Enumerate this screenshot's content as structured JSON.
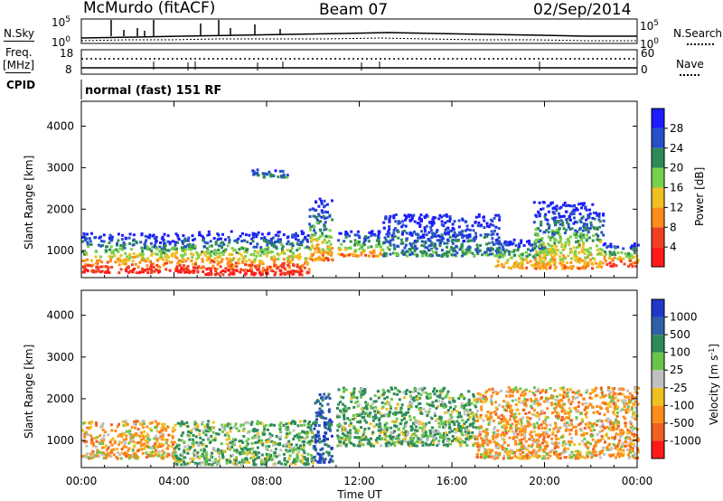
{
  "header": {
    "station": "McMurdo (fitACF)",
    "beam": "Beam 07",
    "date": "02/Sep/2014"
  },
  "top_panel": {
    "nsky_label": "N.Sky",
    "nsearch_label": "N.Search",
    "left_ticks": [
      "10^5",
      "10^0"
    ],
    "right_ticks": [
      "10^5",
      "10^0"
    ],
    "freq_label_1": "Freq.",
    "freq_label_2": "[MHz]",
    "freq_ticks": [
      "18",
      "8"
    ],
    "nave_label": "Nave",
    "nave_ticks": [
      "60",
      "0"
    ],
    "cpid_label": "CPID",
    "mode_text": "normal (fast) 151 RF"
  },
  "chart_data": [
    {
      "type": "heatmap",
      "title": "",
      "xlabel": "Time UT",
      "ylabel": "Slant Range [km]",
      "x_ticks": [
        "00:00",
        "04:00",
        "08:00",
        "12:00",
        "16:00",
        "20:00",
        "00:00"
      ],
      "x_range_hours": [
        0,
        24
      ],
      "y_ticks": [
        1000,
        2000,
        3000,
        4000
      ],
      "ylim": [
        350,
        4600
      ],
      "colorbar": {
        "label": "Power [dB]",
        "ticks": [
          "4",
          "8",
          "12",
          "16",
          "20",
          "24",
          "28"
        ],
        "colors": [
          "#1c1cff",
          "#2550c8",
          "#2e8b57",
          "#79d04a",
          "#f0c020",
          "#ff8c1a",
          "#f04020",
          "#ff1a1a"
        ]
      },
      "scatter_bands": [
        {
          "t": [
            0.0,
            5.0
          ],
          "r": [
            500,
            1450
          ],
          "level": "high"
        },
        {
          "t": [
            5.0,
            9.8
          ],
          "r": [
            450,
            1500
          ],
          "level": "high"
        },
        {
          "t": [
            9.8,
            10.8
          ],
          "r": [
            800,
            2300
          ],
          "level": "medium"
        },
        {
          "t": [
            11.0,
            13.0
          ],
          "r": [
            900,
            1500
          ],
          "level": "medium"
        },
        {
          "t": [
            13.0,
            18.0
          ],
          "r": [
            900,
            1900
          ],
          "level": "low"
        },
        {
          "t": [
            17.8,
            20.0
          ],
          "r": [
            600,
            1300
          ],
          "level": "medium"
        },
        {
          "t": [
            19.5,
            22.5
          ],
          "r": [
            600,
            2200
          ],
          "level": "medium"
        },
        {
          "t": [
            22.5,
            24.0
          ],
          "r": [
            650,
            1200
          ],
          "level": "high"
        },
        {
          "t": [
            7.3,
            9.0
          ],
          "r": [
            2800,
            3000
          ],
          "level": "low"
        }
      ]
    },
    {
      "type": "heatmap",
      "title": "",
      "xlabel": "Time UT",
      "ylabel": "Slant Range [km]",
      "x_ticks": [
        "00:00",
        "04:00",
        "08:00",
        "12:00",
        "16:00",
        "20:00",
        "00:00"
      ],
      "x_range_hours": [
        0,
        24
      ],
      "y_ticks": [
        1000,
        2000,
        3000,
        4000
      ],
      "ylim": [
        350,
        4600
      ],
      "colorbar": {
        "label": "Velocity [m s^-1]",
        "ticks": [
          "1000",
          "500",
          "100",
          "25",
          "-25",
          "-100",
          "-500",
          "-1000"
        ],
        "colors": [
          "#2038c8",
          "#2f5fa8",
          "#2e8b57",
          "#69c54a",
          "#c0c0c0",
          "#f0c020",
          "#ff8c1a",
          "#f06020",
          "#ff1a1a"
        ]
      },
      "scatter_bands": [
        {
          "t": [
            0.0,
            4.0
          ],
          "r": [
            600,
            1500
          ],
          "level": "negative"
        },
        {
          "t": [
            4.0,
            10.0
          ],
          "r": [
            450,
            1500
          ],
          "level": "positive"
        },
        {
          "t": [
            10.0,
            10.8
          ],
          "r": [
            500,
            2200
          ],
          "level": "strong-positive"
        },
        {
          "t": [
            11.0,
            17.0
          ],
          "r": [
            900,
            2300
          ],
          "level": "positive"
        },
        {
          "t": [
            17.0,
            24.0
          ],
          "r": [
            600,
            2300
          ],
          "level": "negative"
        }
      ]
    }
  ]
}
